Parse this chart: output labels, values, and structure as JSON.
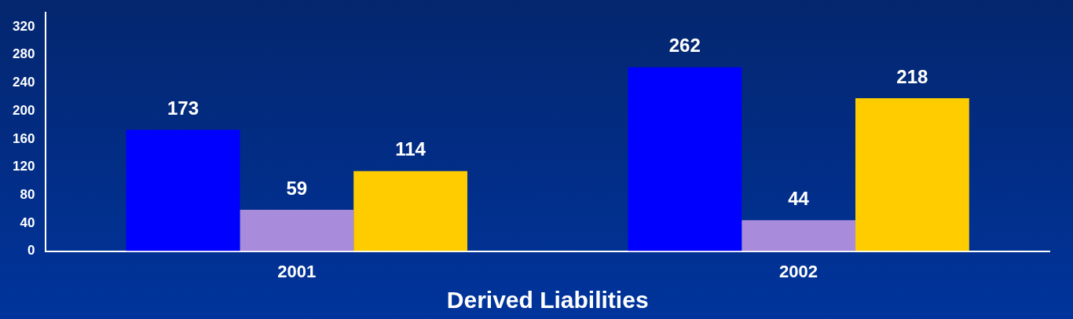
{
  "chart_data": {
    "type": "bar",
    "xlabel": "Derived Liabilities",
    "categories": [
      "2001",
      "2002"
    ],
    "series": [
      {
        "color": "#0000ff",
        "values": [
          173,
          262
        ]
      },
      {
        "color": "#a98bdc",
        "values": [
          59,
          44
        ]
      },
      {
        "color": "#ffcc00",
        "values": [
          114,
          218
        ]
      }
    ],
    "ylim": [
      0,
      340
    ],
    "yticks": [
      0,
      40,
      80,
      120,
      160,
      200,
      240,
      280,
      320
    ],
    "grid": false,
    "legend": false,
    "data_labels": true
  }
}
